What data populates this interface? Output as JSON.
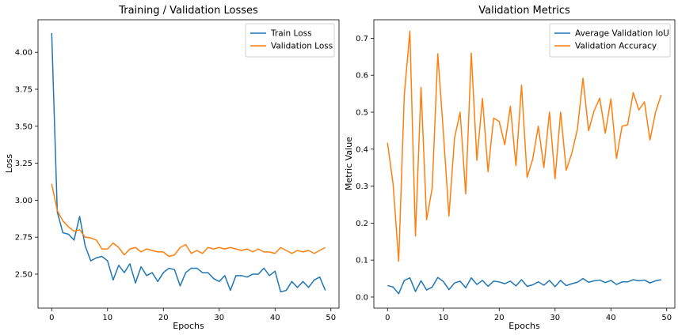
{
  "chart_data": [
    {
      "type": "line",
      "title": "Training / Validation Losses",
      "xlabel": "Epochs",
      "ylabel": "Loss",
      "xlim": [
        -2.45,
        51.45
      ],
      "ylim": [
        2.27,
        4.22
      ],
      "xticks": [
        0,
        10,
        20,
        30,
        40,
        50
      ],
      "yticks": [
        2.5,
        2.75,
        3.0,
        3.25,
        3.5,
        3.75,
        4.0
      ],
      "ytick_decimals": 2,
      "grid": false,
      "legend": "top-right",
      "x": [
        0,
        1,
        2,
        3,
        4,
        5,
        6,
        7,
        8,
        9,
        10,
        11,
        12,
        13,
        14,
        15,
        16,
        17,
        18,
        19,
        20,
        21,
        22,
        23,
        24,
        25,
        26,
        27,
        28,
        29,
        30,
        31,
        32,
        33,
        34,
        35,
        36,
        37,
        38,
        39,
        40,
        41,
        42,
        43,
        44,
        45,
        46,
        47,
        48,
        49
      ],
      "series": [
        {
          "name": "Train Loss",
          "color": "#1f77b4",
          "values": [
            4.13,
            2.92,
            2.78,
            2.77,
            2.73,
            2.89,
            2.69,
            2.59,
            2.61,
            2.62,
            2.59,
            2.46,
            2.56,
            2.51,
            2.57,
            2.44,
            2.55,
            2.49,
            2.51,
            2.45,
            2.51,
            2.54,
            2.53,
            2.42,
            2.51,
            2.54,
            2.54,
            2.51,
            2.51,
            2.47,
            2.45,
            2.49,
            2.39,
            2.49,
            2.49,
            2.48,
            2.5,
            2.5,
            2.54,
            2.49,
            2.52,
            2.38,
            2.39,
            2.45,
            2.41,
            2.45,
            2.41,
            2.46,
            2.48,
            2.39
          ]
        },
        {
          "name": "Validation Loss",
          "color": "#ff7f0e",
          "values": [
            3.11,
            2.93,
            2.86,
            2.82,
            2.79,
            2.8,
            2.75,
            2.745,
            2.73,
            2.67,
            2.67,
            2.71,
            2.68,
            2.63,
            2.67,
            2.68,
            2.65,
            2.67,
            2.66,
            2.65,
            2.65,
            2.62,
            2.63,
            2.68,
            2.7,
            2.64,
            2.66,
            2.64,
            2.68,
            2.67,
            2.68,
            2.67,
            2.68,
            2.67,
            2.66,
            2.67,
            2.65,
            2.67,
            2.65,
            2.65,
            2.64,
            2.68,
            2.66,
            2.64,
            2.66,
            2.65,
            2.66,
            2.64,
            2.66,
            2.68
          ]
        }
      ]
    },
    {
      "type": "line",
      "title": "Validation Metrics",
      "xlabel": "Epochs",
      "ylabel": "Metric Value",
      "xlim": [
        -2.45,
        51.45
      ],
      "ylim": [
        -0.03,
        0.75
      ],
      "xticks": [
        0,
        10,
        20,
        30,
        40,
        50
      ],
      "yticks": [
        0.0,
        0.1,
        0.2,
        0.3,
        0.4,
        0.5,
        0.6,
        0.7
      ],
      "ytick_decimals": 1,
      "grid": false,
      "legend": "top-right",
      "x": [
        0,
        1,
        2,
        3,
        4,
        5,
        6,
        7,
        8,
        9,
        10,
        11,
        12,
        13,
        14,
        15,
        16,
        17,
        18,
        19,
        20,
        21,
        22,
        23,
        24,
        25,
        26,
        27,
        28,
        29,
        30,
        31,
        32,
        33,
        34,
        35,
        36,
        37,
        38,
        39,
        40,
        41,
        42,
        43,
        44,
        45,
        46,
        47,
        48,
        49
      ],
      "series": [
        {
          "name": "Average Validation IoU",
          "color": "#1f77b4",
          "values": [
            0.031,
            0.027,
            0.009,
            0.045,
            0.052,
            0.015,
            0.044,
            0.019,
            0.027,
            0.053,
            0.042,
            0.02,
            0.038,
            0.043,
            0.025,
            0.052,
            0.034,
            0.045,
            0.029,
            0.043,
            0.041,
            0.036,
            0.043,
            0.03,
            0.047,
            0.029,
            0.033,
            0.041,
            0.032,
            0.045,
            0.028,
            0.045,
            0.031,
            0.036,
            0.04,
            0.05,
            0.04,
            0.044,
            0.046,
            0.039,
            0.045,
            0.034,
            0.041,
            0.041,
            0.047,
            0.044,
            0.046,
            0.038,
            0.044,
            0.047
          ]
        },
        {
          "name": "Validation Accuracy",
          "color": "#ff7f0e",
          "values": [
            0.417,
            0.305,
            0.097,
            0.546,
            0.719,
            0.165,
            0.567,
            0.209,
            0.295,
            0.658,
            0.445,
            0.219,
            0.43,
            0.5,
            0.279,
            0.66,
            0.37,
            0.537,
            0.339,
            0.484,
            0.475,
            0.412,
            0.516,
            0.355,
            0.573,
            0.324,
            0.373,
            0.462,
            0.35,
            0.5,
            0.32,
            0.5,
            0.343,
            0.389,
            0.454,
            0.592,
            0.45,
            0.504,
            0.538,
            0.443,
            0.536,
            0.375,
            0.462,
            0.466,
            0.553,
            0.506,
            0.528,
            0.425,
            0.5,
            0.547
          ]
        }
      ]
    }
  ]
}
